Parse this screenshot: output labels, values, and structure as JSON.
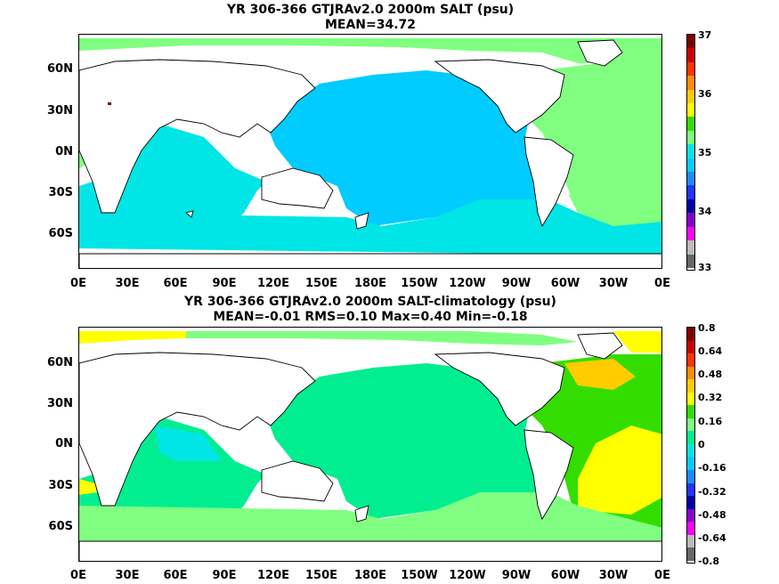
{
  "panels": [
    {
      "title_line1": "YR 306-366 GTJRAv2.0 2000m SALT (psu)",
      "title_line2": "MEAN=34.72",
      "lat_labels": [
        "60N",
        "30N",
        "0N",
        "30S",
        "60S"
      ],
      "lon_labels": [
        "0E",
        "30E",
        "60E",
        "90E",
        "120E",
        "150E",
        "180E",
        "150W",
        "120W",
        "90W",
        "60W",
        "30W",
        "0E"
      ],
      "colorbar": {
        "labels": [
          "37",
          "36",
          "35",
          "34",
          "33"
        ],
        "colors": [
          "#7f0000",
          "#cc0000",
          "#ff3300",
          "#ff8c00",
          "#ffcc00",
          "#ffff00",
          "#33dd00",
          "#80ff80",
          "#00e5e5",
          "#00ccff",
          "#1a8cff",
          "#2233ff",
          "#0000aa",
          "#8800cc",
          "#ff00ff",
          "#bbbbbb",
          "#666666"
        ]
      }
    },
    {
      "title_line1": "YR 306-366 GTJRAv2.0 2000m SALT-climatology (psu)",
      "title_line2": "MEAN=-0.01   RMS=0.10   Max=0.40   Min=-0.18",
      "lat_labels": [
        "60N",
        "30N",
        "0N",
        "30S",
        "60S"
      ],
      "lon_labels": [
        "0E",
        "30E",
        "60E",
        "90E",
        "120E",
        "150E",
        "180E",
        "150W",
        "120W",
        "90W",
        "60W",
        "30W",
        "0E"
      ],
      "colorbar": {
        "labels": [
          "0.8",
          "0.64",
          "0.48",
          "0.32",
          "0.16",
          "0",
          "-0.16",
          "-0.32",
          "-0.48",
          "-0.64",
          "-0.8"
        ],
        "colors": [
          "#7f0000",
          "#cc0000",
          "#ff3300",
          "#ff8c00",
          "#ffcc00",
          "#ffff00",
          "#33dd00",
          "#80ff80",
          "#00ee90",
          "#00e5e5",
          "#00ccff",
          "#1a8cff",
          "#2233ff",
          "#0000aa",
          "#8800cc",
          "#ff00ff",
          "#bbbbbb",
          "#666666"
        ]
      }
    }
  ]
}
